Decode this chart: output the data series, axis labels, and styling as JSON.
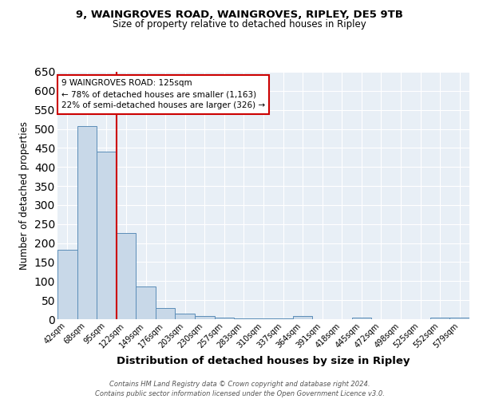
{
  "title1": "9, WAINGROVES ROAD, WAINGROVES, RIPLEY, DE5 9TB",
  "title2": "Size of property relative to detached houses in Ripley",
  "xlabel": "Distribution of detached houses by size in Ripley",
  "ylabel": "Number of detached properties",
  "categories": [
    "42sqm",
    "68sqm",
    "95sqm",
    "122sqm",
    "149sqm",
    "176sqm",
    "203sqm",
    "230sqm",
    "257sqm",
    "283sqm",
    "310sqm",
    "337sqm",
    "364sqm",
    "391sqm",
    "418sqm",
    "445sqm",
    "472sqm",
    "498sqm",
    "525sqm",
    "552sqm",
    "579sqm"
  ],
  "values": [
    182,
    508,
    440,
    226,
    85,
    29,
    15,
    9,
    5,
    2,
    2,
    2,
    8,
    0,
    0,
    5,
    0,
    0,
    0,
    5,
    5
  ],
  "bar_color": "#c8d8e8",
  "bar_edge_color": "#5b8db8",
  "bg_color": "#e8eff6",
  "grid_color": "#ffffff",
  "vline_color": "#cc0000",
  "annotation_text": "9 WAINGROVES ROAD: 125sqm\n← 78% of detached houses are smaller (1,163)\n22% of semi-detached houses are larger (326) →",
  "annotation_box_color": "#ffffff",
  "annotation_box_edge": "#cc0000",
  "footer": "Contains HM Land Registry data © Crown copyright and database right 2024.\nContains public sector information licensed under the Open Government Licence v3.0.",
  "ylim": [
    0,
    650
  ],
  "yticks": [
    0,
    50,
    100,
    150,
    200,
    250,
    300,
    350,
    400,
    450,
    500,
    550,
    600,
    650
  ]
}
